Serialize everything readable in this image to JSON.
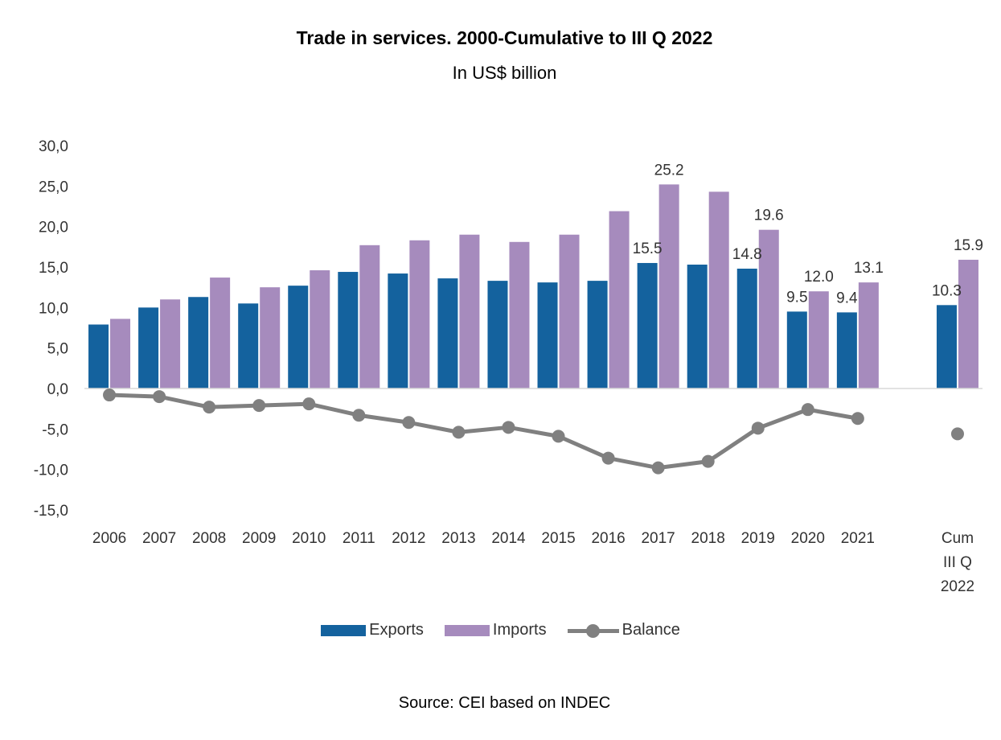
{
  "title": "Trade in services. 2000-Cumulative to III Q 2022",
  "subtitle": "In US$ billion",
  "source": "Source: CEI based on INDEC",
  "colors": {
    "exports": "#14629e",
    "imports": "#a68bbd",
    "balance": "#808080",
    "axis": "#d9d9d9"
  },
  "chart_data": {
    "type": "bar",
    "categories": [
      [
        "2006"
      ],
      [
        "2007"
      ],
      [
        "2008"
      ],
      [
        "2009"
      ],
      [
        "2010"
      ],
      [
        "2011"
      ],
      [
        "2012"
      ],
      [
        "2013"
      ],
      [
        "2014"
      ],
      [
        "2015"
      ],
      [
        "2016"
      ],
      [
        "2017"
      ],
      [
        "2018"
      ],
      [
        "2019"
      ],
      [
        "2020"
      ],
      [
        "2021"
      ],
      [
        "Cum",
        "III Q",
        "2022"
      ]
    ],
    "ylim": [
      -15,
      30
    ],
    "yticks": [
      "30,0",
      "25,0",
      "20,0",
      "15,0",
      "10,0",
      "5,0",
      "0,0",
      "-5,0",
      "-10,0",
      "-15,0"
    ],
    "ytick_values": [
      30,
      25,
      20,
      15,
      10,
      5,
      0,
      -5,
      -10,
      -15
    ],
    "series": [
      {
        "name": "Exports",
        "type": "bar",
        "values": [
          7.9,
          10.0,
          11.3,
          10.5,
          12.7,
          14.4,
          14.2,
          13.6,
          13.3,
          13.1,
          13.3,
          15.5,
          15.3,
          14.8,
          9.5,
          9.4,
          10.3
        ],
        "labels": [
          null,
          null,
          null,
          null,
          null,
          null,
          null,
          null,
          null,
          null,
          null,
          "15.5",
          null,
          "14.8",
          "9.5",
          "9.4",
          "10.3"
        ]
      },
      {
        "name": "Imports",
        "type": "bar",
        "values": [
          8.6,
          11.0,
          13.7,
          12.5,
          14.6,
          17.7,
          18.3,
          19.0,
          18.1,
          19.0,
          21.9,
          25.2,
          24.3,
          19.6,
          12.0,
          13.1,
          15.9
        ],
        "labels": [
          null,
          null,
          null,
          null,
          null,
          null,
          null,
          null,
          null,
          null,
          null,
          "25.2",
          null,
          "19.6",
          "12.0",
          "13.1",
          "15.9"
        ]
      },
      {
        "name": "Balance",
        "type": "line",
        "values": [
          -0.8,
          -1.0,
          -2.3,
          -2.1,
          -1.9,
          -3.3,
          -4.2,
          -5.4,
          -4.8,
          -5.9,
          -8.6,
          -9.8,
          -9.0,
          -4.9,
          -2.6,
          -3.7,
          -5.6
        ]
      }
    ]
  }
}
